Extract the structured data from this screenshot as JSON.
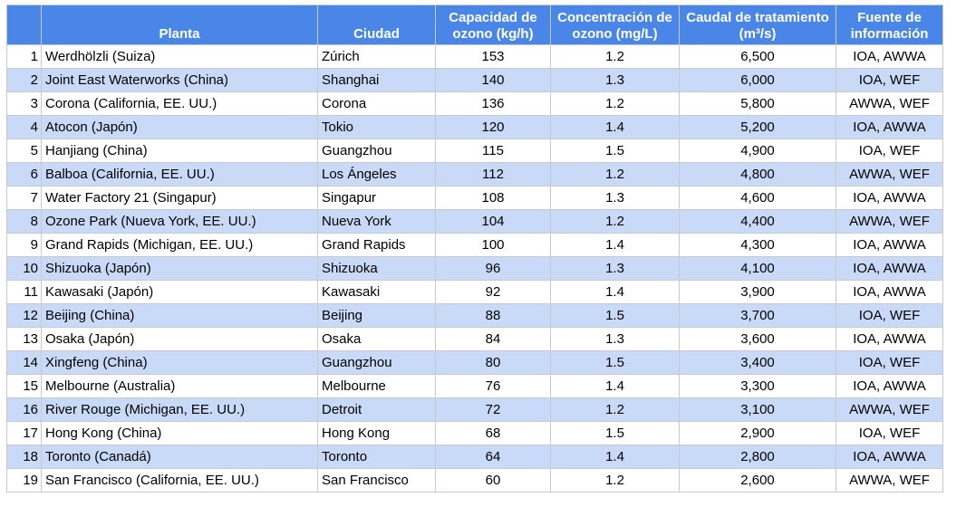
{
  "table": {
    "headers": {
      "number": "",
      "plant": "Planta",
      "city": "Ciudad",
      "capacity": "Capacidad de ozono (kg/h)",
      "concentration": "Concentración de ozono (mg/L)",
      "flow": "Caudal de tratamiento (m³/s)",
      "source": "Fuente de información"
    },
    "rows": [
      {
        "number": "1",
        "plant": "Werdhölzli (Suiza)",
        "city": "Zúrich",
        "capacity": "153",
        "concentration": "1.2",
        "flow": "6,500",
        "source": "IOA, AWWA"
      },
      {
        "number": "2",
        "plant": "Joint East Waterworks (China)",
        "city": "Shanghai",
        "capacity": "140",
        "concentration": "1.3",
        "flow": "6,000",
        "source": "IOA, WEF"
      },
      {
        "number": "3",
        "plant": "Corona (California, EE. UU.)",
        "city": "Corona",
        "capacity": "136",
        "concentration": "1.2",
        "flow": "5,800",
        "source": "AWWA, WEF"
      },
      {
        "number": "4",
        "plant": "Atocon (Japón)",
        "city": "Tokio",
        "capacity": "120",
        "concentration": "1.4",
        "flow": "5,200",
        "source": "IOA, AWWA"
      },
      {
        "number": "5",
        "plant": "Hanjiang (China)",
        "city": "Guangzhou",
        "capacity": "115",
        "concentration": "1.5",
        "flow": "4,900",
        "source": "IOA, WEF"
      },
      {
        "number": "6",
        "plant": "Balboa (California, EE. UU.)",
        "city": "Los Ángeles",
        "capacity": "112",
        "concentration": "1.2",
        "flow": "4,800",
        "source": "AWWA, WEF"
      },
      {
        "number": "7",
        "plant": "Water Factory 21 (Singapur)",
        "city": "Singapur",
        "capacity": "108",
        "concentration": "1.3",
        "flow": "4,600",
        "source": "IOA, AWWA"
      },
      {
        "number": "8",
        "plant": "Ozone Park (Nueva York, EE. UU.)",
        "city": "Nueva York",
        "capacity": "104",
        "concentration": "1.2",
        "flow": "4,400",
        "source": "AWWA, WEF"
      },
      {
        "number": "9",
        "plant": "Grand Rapids (Michigan, EE. UU.)",
        "city": "Grand Rapids",
        "capacity": "100",
        "concentration": "1.4",
        "flow": "4,300",
        "source": "IOA, AWWA"
      },
      {
        "number": "10",
        "plant": "Shizuoka (Japón)",
        "city": "Shizuoka",
        "capacity": "96",
        "concentration": "1.3",
        "flow": "4,100",
        "source": "IOA, AWWA"
      },
      {
        "number": "11",
        "plant": "Kawasaki (Japón)",
        "city": "Kawasaki",
        "capacity": "92",
        "concentration": "1.4",
        "flow": "3,900",
        "source": "IOA, AWWA"
      },
      {
        "number": "12",
        "plant": "Beijing (China)",
        "city": "Beijing",
        "capacity": "88",
        "concentration": "1.5",
        "flow": "3,700",
        "source": "IOA, WEF"
      },
      {
        "number": "13",
        "plant": "Osaka (Japón)",
        "city": "Osaka",
        "capacity": "84",
        "concentration": "1.3",
        "flow": "3,600",
        "source": "IOA, AWWA"
      },
      {
        "number": "14",
        "plant": "Xingfeng (China)",
        "city": "Guangzhou",
        "capacity": "80",
        "concentration": "1.5",
        "flow": "3,400",
        "source": "IOA, WEF"
      },
      {
        "number": "15",
        "plant": "Melbourne (Australia)",
        "city": "Melbourne",
        "capacity": "76",
        "concentration": "1.4",
        "flow": "3,300",
        "source": "IOA, AWWA"
      },
      {
        "number": "16",
        "plant": "River Rouge (Michigan, EE. UU.)",
        "city": "Detroit",
        "capacity": "72",
        "concentration": "1.2",
        "flow": "3,100",
        "source": "AWWA, WEF"
      },
      {
        "number": "17",
        "plant": "Hong Kong (China)",
        "city": "Hong Kong",
        "capacity": "68",
        "concentration": "1.5",
        "flow": "2,900",
        "source": "IOA, WEF"
      },
      {
        "number": "18",
        "plant": "Toronto (Canadá)",
        "city": "Toronto",
        "capacity": "64",
        "concentration": "1.4",
        "flow": "2,800",
        "source": "IOA, AWWA"
      },
      {
        "number": "19",
        "plant": "San Francisco (California, EE. UU.)",
        "city": "San Francisco",
        "capacity": "60",
        "concentration": "1.2",
        "flow": "2,600",
        "source": "AWWA, WEF"
      }
    ]
  },
  "colors": {
    "header_bg": "#4a86e8",
    "header_text": "#ffffff",
    "row_alt_bg": "#c9daf8",
    "row_bg": "#ffffff",
    "grid_line": "#c9c9c9"
  }
}
